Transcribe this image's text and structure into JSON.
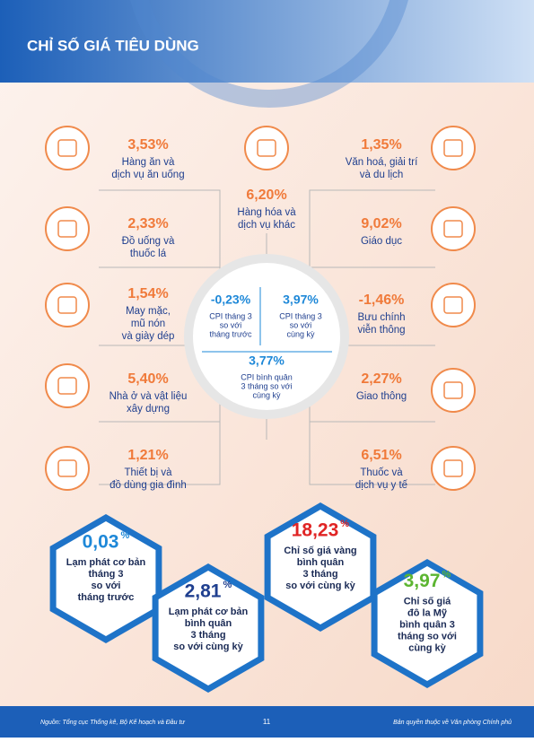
{
  "header": {
    "title": "CHỈ SỐ GIÁ TIÊU DÙNG"
  },
  "groups": [
    {
      "value": "3,53%",
      "lines": [
        "Hàng ăn và",
        "dịch vụ ăn uống"
      ]
    },
    {
      "value": "2,33%",
      "lines": [
        "Đồ uống và",
        "thuốc lá"
      ]
    },
    {
      "value": "1,54%",
      "lines": [
        "May mặc,",
        "mũ nón",
        "và giày dép"
      ]
    },
    {
      "value": "5,40%",
      "lines": [
        "Nhà ở và vật liệu",
        "xây dựng"
      ]
    },
    {
      "value": "1,21%",
      "lines": [
        "Thiết bị và",
        "đồ dùng gia đình"
      ]
    },
    {
      "value": "6,20%",
      "lines": [
        "Hàng hóa và",
        "dịch vụ khác"
      ]
    },
    {
      "value": "1,35%",
      "lines": [
        "Văn hoá, giải trí",
        "và du lịch"
      ]
    },
    {
      "value": "9,02%",
      "lines": [
        "Giáo dục"
      ]
    },
    {
      "value": "-1,46%",
      "lines": [
        "Bưu chính",
        "viễn thông"
      ]
    },
    {
      "value": "2,27%",
      "lines": [
        "Giao thông"
      ]
    },
    {
      "value": "6,51%",
      "lines": [
        "Thuốc và",
        "dịch vụ y tế"
      ]
    }
  ],
  "cpi": [
    {
      "value": "-0,23%",
      "lines": [
        "CPI tháng 3",
        "so với",
        "tháng trước"
      ]
    },
    {
      "value": "3,97%",
      "lines": [
        "CPI tháng 3",
        "so với",
        "cùng kỳ"
      ]
    },
    {
      "value": "3,77%",
      "lines": [
        "CPI bình quân",
        "3 tháng so với",
        "cùng kỳ"
      ]
    }
  ],
  "highlights": [
    {
      "value": "0,03",
      "unit": "%",
      "color": "#1e88d8",
      "lines": [
        "Lạm phát cơ bản",
        "tháng 3",
        "so với",
        "tháng trước"
      ]
    },
    {
      "value": "2,81",
      "unit": "%",
      "color": "#1f3f8f",
      "lines": [
        "Lạm phát cơ bản",
        "bình quân",
        "3 tháng",
        "so với cùng kỳ"
      ]
    },
    {
      "value": "18,23",
      "unit": "%",
      "color": "#e02424",
      "lines": [
        "Chỉ số giá vàng",
        "bình quân",
        "3 tháng",
        "so với cùng kỳ"
      ]
    },
    {
      "value": "3,97",
      "unit": "%",
      "color": "#5cb531",
      "lines": [
        "Chỉ số giá",
        "đô la Mỹ",
        "bình quân 3",
        "tháng so với",
        "cùng kỳ"
      ]
    }
  ],
  "footer": {
    "source": "Nguồn: Tổng cục Thống kê, Bộ Kế hoạch và Đầu tư",
    "page": "11",
    "rights": "Bản quyền thuộc về Văn phòng Chính phủ"
  }
}
